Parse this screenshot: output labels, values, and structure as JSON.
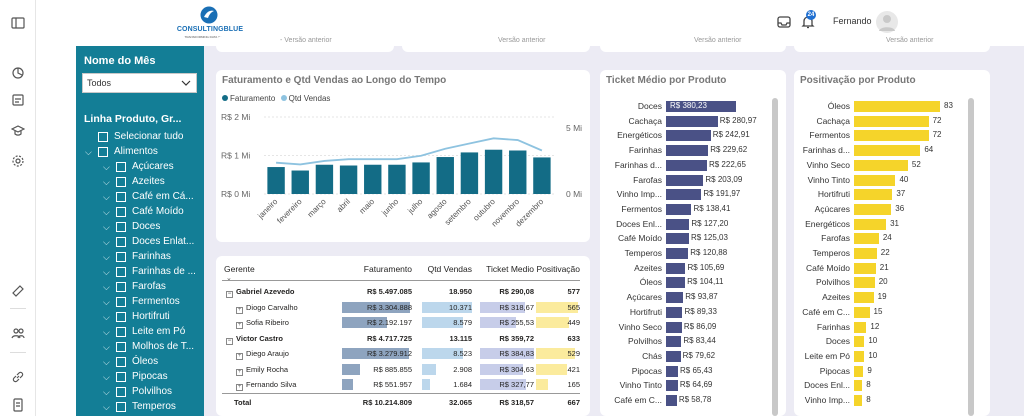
{
  "topbar": {
    "logo_text": "CONSULTINGBLUE",
    "logo_sub": "TRANSFORMING DATA INTO VALUE",
    "notif_count": "24",
    "user_name": "Fernando"
  },
  "slicer_month": {
    "title": "Nome do Mês",
    "selected": "Todos"
  },
  "slicer_product": {
    "title": "Linha Produto, Gr...",
    "items": [
      {
        "label": "Selecionar tudo",
        "level": 0,
        "toggle": ""
      },
      {
        "label": "Alimentos",
        "level": 0,
        "toggle": "⌵"
      },
      {
        "label": "Açúcares",
        "level": 1,
        "toggle": "⌵"
      },
      {
        "label": "Azeites",
        "level": 1,
        "toggle": "⌵"
      },
      {
        "label": "Café em Cá...",
        "level": 1,
        "toggle": "⌵"
      },
      {
        "label": "Café Moído",
        "level": 1,
        "toggle": "⌵"
      },
      {
        "label": "Doces",
        "level": 1,
        "toggle": "⌵"
      },
      {
        "label": "Doces Enlat...",
        "level": 1,
        "toggle": "⌵"
      },
      {
        "label": "Farinhas",
        "level": 1,
        "toggle": "⌵"
      },
      {
        "label": "Farinhas de ...",
        "level": 1,
        "toggle": "⌵"
      },
      {
        "label": "Farofas",
        "level": 1,
        "toggle": "⌵"
      },
      {
        "label": "Fermentos",
        "level": 1,
        "toggle": "⌵"
      },
      {
        "label": "Hortifruti",
        "level": 1,
        "toggle": "⌵"
      },
      {
        "label": "Leite em Pó",
        "level": 1,
        "toggle": "⌵"
      },
      {
        "label": "Molhos de T...",
        "level": 1,
        "toggle": "⌵"
      },
      {
        "label": "Óleos",
        "level": 1,
        "toggle": "⌵"
      },
      {
        "label": "Pipocas",
        "level": 1,
        "toggle": "⌵"
      },
      {
        "label": "Polvilhos",
        "level": 1,
        "toggle": "⌵"
      },
      {
        "label": "Temperos",
        "level": 1,
        "toggle": "⌵"
      }
    ]
  },
  "kpi_fragments": [
    "- Versão anterior",
    "Versão anterior",
    "Versão anterior",
    "Versão anterior"
  ],
  "chart_data": [
    {
      "type": "bar",
      "title": "Faturamento e Qtd Vendas ao Longo do Tempo",
      "categories": [
        "janeiro",
        "fevereiro",
        "março",
        "abril",
        "maio",
        "junho",
        "julho",
        "agosto",
        "setembro",
        "outubro",
        "novembro",
        "dezembro"
      ],
      "series": [
        {
          "name": "Faturamento",
          "type": "bar",
          "color": "#136c86",
          "values": [
            0.7,
            0.61,
            0.76,
            0.74,
            0.76,
            0.76,
            0.82,
            0.96,
            1.08,
            1.15,
            1.13,
            0.95
          ]
        },
        {
          "name": "Qtd Vendas",
          "type": "line",
          "color": "#8ec3e0",
          "values": [
            1.8,
            1.7,
            1.9,
            2.0,
            2.0,
            2.0,
            2.2,
            2.6,
            2.9,
            3.2,
            3.1,
            2.5
          ]
        }
      ],
      "y_ticks_left": [
        "R$ 0 Mi",
        "R$ 1 Mi",
        "R$ 2 Mi"
      ],
      "y_ticks_right": [
        "0 Mi",
        "5 Mi"
      ],
      "ylim_left": [
        0,
        2
      ],
      "ylim_right": [
        0,
        5
      ],
      "legend": "top-left"
    },
    {
      "type": "bar",
      "orientation": "horizontal",
      "title": "Ticket Médio por Produto",
      "color": "#4a5186",
      "categories": [
        "Doces",
        "Cachaça",
        "Energéticos",
        "Farinhas",
        "Farinhas d...",
        "Farofas",
        "Vinho Imp...",
        "Fermentos",
        "Doces Enl...",
        "Café Moído",
        "Temperos",
        "Azeites",
        "Óleos",
        "Açúcares",
        "Hortifruti",
        "Vinho Seco",
        "Polvilhos",
        "Chás",
        "Pipocas",
        "Vinho Tinto",
        "Café em C..."
      ],
      "values": [
        380.23,
        280.97,
        242.91,
        229.62,
        222.65,
        203.09,
        191.97,
        138.41,
        127.2,
        125.03,
        120.88,
        105.69,
        104.11,
        93.87,
        89.33,
        86.09,
        83.44,
        79.62,
        65.43,
        64.69,
        58.78
      ],
      "labels": [
        "R$ 380,23",
        "R$ 280,97",
        "R$ 242,91",
        "R$ 229,62",
        "R$ 222,65",
        "R$ 203,09",
        "R$ 191,97",
        "R$ 138,41",
        "R$ 127,20",
        "R$ 125,03",
        "R$ 120,88",
        "R$ 105,69",
        "R$ 104,11",
        "R$ 93,87",
        "R$ 89,33",
        "R$ 86,09",
        "R$ 83,44",
        "R$ 79,62",
        "R$ 65,43",
        "R$ 64,69",
        "R$ 58,78"
      ]
    },
    {
      "type": "bar",
      "orientation": "horizontal",
      "title": "Positivação por Produto",
      "color": "#f5d42a",
      "categories": [
        "Óleos",
        "Cachaça",
        "Fermentos",
        "Farinhas d...",
        "Vinho Seco",
        "Vinho Tinto",
        "Hortifruti",
        "Açúcares",
        "Energéticos",
        "Farofas",
        "Temperos",
        "Café Moído",
        "Polvilhos",
        "Azeites",
        "Café em C...",
        "Farinhas",
        "Doces",
        "Leite em Pó",
        "Pipocas",
        "Doces Enl...",
        "Vinho Imp..."
      ],
      "values": [
        83,
        72,
        72,
        64,
        52,
        40,
        37,
        36,
        31,
        24,
        22,
        21,
        20,
        19,
        15,
        12,
        10,
        10,
        9,
        8,
        8
      ]
    }
  ],
  "table": {
    "headers": [
      "Gerente",
      "Faturamento",
      "Qtd Vendas",
      "Ticket Medio",
      "Positivação"
    ],
    "rows": [
      {
        "level": 0,
        "name": "Gabriel Azevedo",
        "fat": "R$ 5.497.085",
        "qtd": "18.950",
        "tm": "R$ 290,08",
        "pos": "577"
      },
      {
        "level": 1,
        "name": "Diogo Carvalho",
        "fat": "R$ 3.304.888",
        "qtd": "10.371",
        "tm": "R$ 318,67",
        "pos": "565",
        "fat_v": 3304888,
        "qtd_v": 10371,
        "tm_v": 318.67,
        "pos_v": 565
      },
      {
        "level": 1,
        "name": "Sofia Ribeiro",
        "fat": "R$ 2.192.197",
        "qtd": "8.579",
        "tm": "R$ 255,53",
        "pos": "449",
        "fat_v": 2192197,
        "qtd_v": 8579,
        "tm_v": 255.53,
        "pos_v": 449
      },
      {
        "level": 0,
        "name": "Victor Castro",
        "fat": "R$ 4.717.725",
        "qtd": "13.115",
        "tm": "R$ 359,72",
        "pos": "633"
      },
      {
        "level": 1,
        "name": "Diego Araujo",
        "fat": "R$ 3.279.912",
        "qtd": "8.523",
        "tm": "R$ 384,83",
        "pos": "529",
        "fat_v": 3279912,
        "qtd_v": 8523,
        "tm_v": 384.83,
        "pos_v": 529
      },
      {
        "level": 1,
        "name": "Emily Rocha",
        "fat": "R$ 885.855",
        "qtd": "2.908",
        "tm": "R$ 304,63",
        "pos": "421",
        "fat_v": 885855,
        "qtd_v": 2908,
        "tm_v": 304.63,
        "pos_v": 421
      },
      {
        "level": 1,
        "name": "Fernando Silva",
        "fat": "R$ 551.957",
        "qtd": "1.684",
        "tm": "R$ 327,77",
        "pos": "165",
        "fat_v": 551957,
        "qtd_v": 1684,
        "tm_v": 327.77,
        "pos_v": 165
      },
      {
        "level": -1,
        "name": "Total",
        "fat": "R$ 10.214.809",
        "qtd": "32.065",
        "tm": "R$ 318,57",
        "pos": "667"
      }
    ]
  },
  "colors": {
    "slicer_bg": "#137e96",
    "canvas_bg": "#ecebf4",
    "fat_bar": "#8ea4bf",
    "qtd_bar": "#bcd7ec",
    "tm_bar": "#c7cde9",
    "pos_bar": "#fbeb9d"
  }
}
